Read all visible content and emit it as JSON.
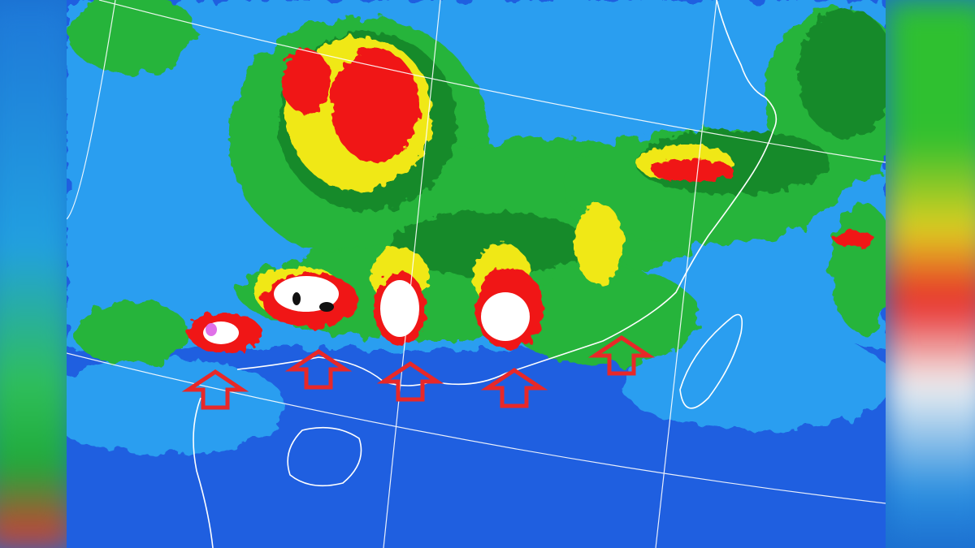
{
  "image": {
    "kind": "enhanced infrared satellite cloud image",
    "colors": {
      "ocean_clear": "#1f5fe0",
      "low_cloud": "#2aa8f0",
      "cloud_green": "#26b43a",
      "cloud_dark_green": "#178a2a",
      "cloud_yellow": "#f0e818",
      "cloud_orange": "#d8a020",
      "cloud_red": "#f01818",
      "cloud_white": "#ffffff",
      "cloud_black": "#111111",
      "cloud_pink": "#e070e8",
      "coastline": "#ffffff",
      "grid": "#ffffff",
      "arrow": "#e82828"
    },
    "annotations": {
      "arrow_icon": "up-arrow-outline",
      "arrow_count": 5
    }
  }
}
